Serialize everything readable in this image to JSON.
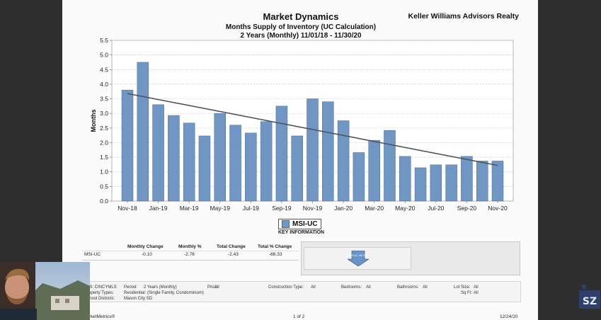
{
  "report": {
    "title": "Market Dynamics",
    "subtitle": "Months Supply of Inventory (UC Calculation)",
    "period": "2 Years (Monthly) 11/01/18 - 11/30/20",
    "brand": "Keller Williams Advisors Realty"
  },
  "chart_data": {
    "type": "bar",
    "title": "Market Dynamics",
    "ylabel": "Months",
    "xlabel": "",
    "ylim": [
      0,
      5.5
    ],
    "yticks": [
      "0.0",
      "0.5",
      "1.0",
      "1.5",
      "2.0",
      "2.5",
      "3.0",
      "3.5",
      "4.0",
      "4.5",
      "5.0",
      "5.5"
    ],
    "xtick_labels": [
      "Nov-18",
      "Jan-19",
      "Mar-19",
      "May-19",
      "Jul-19",
      "Sep-19",
      "Nov-19",
      "Jan-20",
      "Mar-20",
      "May-20",
      "Jul-20",
      "Sep-20",
      "Nov-20"
    ],
    "categories": [
      "Nov-18",
      "Dec-18",
      "Jan-19",
      "Feb-19",
      "Mar-19",
      "Apr-19",
      "May-19",
      "Jun-19",
      "Jul-19",
      "Aug-19",
      "Sep-19",
      "Oct-19",
      "Nov-19",
      "Dec-19",
      "Jan-20",
      "Feb-20",
      "Mar-20",
      "Apr-20",
      "May-20",
      "Jun-20",
      "Jul-20",
      "Aug-20",
      "Sep-20",
      "Oct-20",
      "Nov-20"
    ],
    "series": [
      {
        "name": "MSI-UC",
        "values": [
          3.8,
          4.75,
          3.3,
          2.93,
          2.67,
          2.23,
          3.0,
          2.6,
          2.33,
          2.72,
          3.25,
          2.23,
          3.5,
          3.4,
          2.75,
          1.66,
          2.08,
          2.42,
          1.53,
          1.14,
          1.24,
          1.24,
          1.53,
          1.37,
          1.37
        ]
      }
    ],
    "trendline": {
      "start": 3.68,
      "end": 1.22
    },
    "grid": true,
    "legend_position": "bottom-center",
    "bar_color": "#7096c4",
    "trend_color": "#4d5560"
  },
  "key": {
    "label": "MSI-UC",
    "caption": "KEY INFORMATION"
  },
  "stats": {
    "headers": [
      "Monthly Change",
      "Monthly %",
      "Total Change",
      "Total % Change"
    ],
    "row_label": "MSI-UC",
    "values": [
      "-0.10",
      "-2.76",
      "-2.43",
      "-66.33"
    ]
  },
  "panel": {
    "arrow_text": "MSI-UC -66.33%"
  },
  "criteria": {
    "mls": "LS:  CINCYMLS",
    "period_label": "Period:",
    "period_value": "2 Years (Monthly)",
    "price_label": "Price:",
    "price_value": "All",
    "construction_label": "Construction Type:",
    "construction_value": "All",
    "bedrooms_label": "Bedrooms:",
    "bedrooms_value": "All",
    "bathrooms_label": "Bathrooms:",
    "bathrooms_value": "All",
    "lotsize_label": "Lot Size:",
    "lotsize_value": "All",
    "proptype_label": "roperty Types:",
    "proptype_value": "Residential: (Single Family, Condominium)",
    "sqft_label": "Sq Ft:",
    "sqft_value": "All",
    "school_label": "chool Districts:",
    "school_value": "Mason City SD"
  },
  "footer": {
    "left": "arketMetrics®",
    "center": "1 of 2",
    "right": "12/24/20"
  },
  "colors": {
    "bar": "#7096c4",
    "bar_stroke": "#4a6a94",
    "trend": "#4d5560",
    "grid": "#c8c8c8"
  }
}
